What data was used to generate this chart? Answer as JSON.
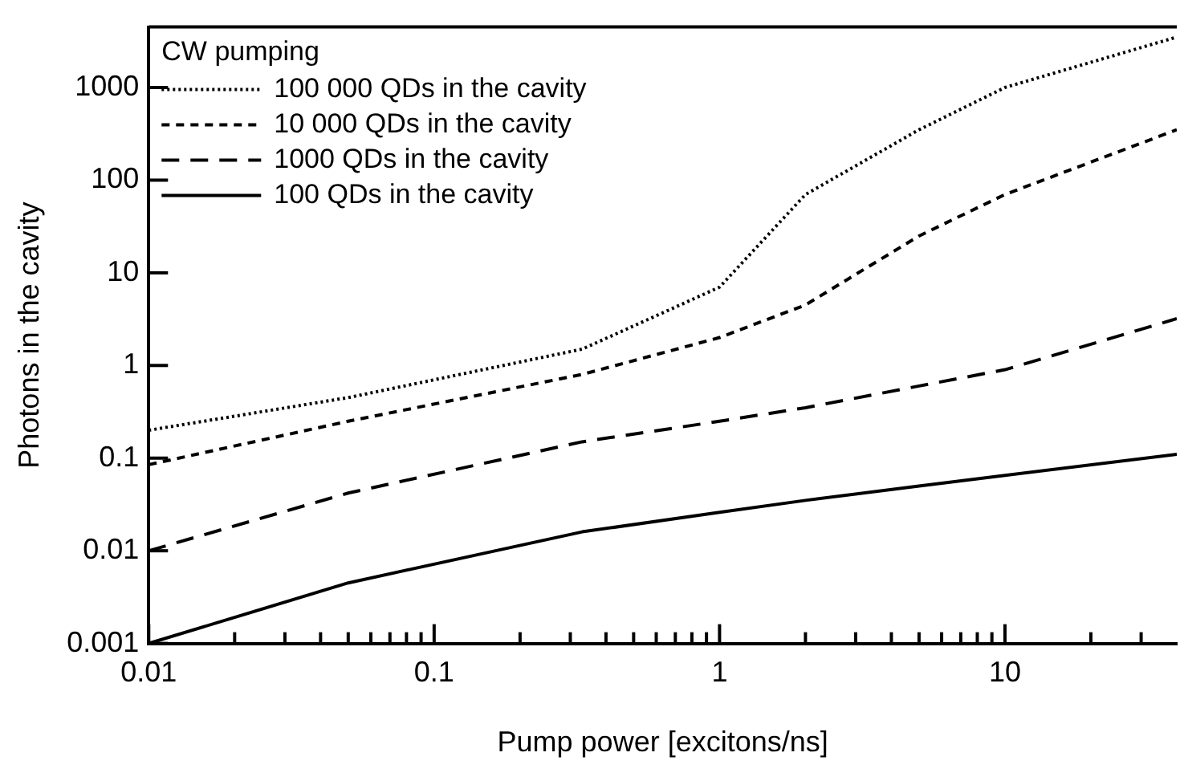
{
  "chart_data": {
    "type": "line",
    "xlabel": "Pump power [excitons/ns]",
    "ylabel": "Photons in the cavity",
    "legend_title": "CW pumping",
    "legend": "top left",
    "grid": false,
    "log": "xy",
    "marker": "none",
    "xlim": [
      0.01,
      40
    ],
    "ylim": [
      0.001,
      4500
    ],
    "xticks": [
      0.01,
      {
        "value": 0.02,
        "label": null
      },
      {
        "value": 0.03,
        "label": null
      },
      {
        "value": 0.04,
        "label": null
      },
      {
        "value": 0.05,
        "label": null
      },
      {
        "value": 0.06,
        "label": null
      },
      {
        "value": 0.07,
        "label": null
      },
      {
        "value": 0.08,
        "label": null
      },
      {
        "value": 0.09,
        "label": null
      },
      0.1,
      {
        "value": 0.2,
        "label": null
      },
      {
        "value": 0.3,
        "label": null
      },
      {
        "value": 0.4,
        "label": null
      },
      {
        "value": 0.5,
        "label": null
      },
      {
        "value": 0.6,
        "label": null
      },
      {
        "value": 0.7,
        "label": null
      },
      {
        "value": 0.8,
        "label": null
      },
      {
        "value": 0.9,
        "label": null
      },
      1,
      {
        "value": 2,
        "label": null
      },
      {
        "value": 3,
        "label": null
      },
      {
        "value": 4,
        "label": null
      },
      {
        "value": 5,
        "label": null
      },
      {
        "value": 6,
        "label": null
      },
      {
        "value": 7,
        "label": null
      },
      {
        "value": 8,
        "label": null
      },
      {
        "value": 9,
        "label": null
      },
      10,
      {
        "value": 20,
        "label": null
      },
      {
        "value": 30,
        "label": null
      }
    ],
    "yticks": [
      0.001,
      0.01,
      0.1,
      1,
      10,
      100,
      1000
    ],
    "x": [
      0.01,
      0.05,
      0.33,
      1,
      2,
      5,
      10,
      40
    ],
    "series": [
      {
        "name": "100 000 QDs in the cavity",
        "color": "#000000",
        "line_style": "dotted",
        "values": [
          0.2,
          0.45,
          1.5,
          7,
          70,
          350,
          1000,
          3500
        ]
      },
      {
        "name": "10 000 QDs in the cavity",
        "color": "#000000",
        "line_style": "dashed",
        "values": [
          0.085,
          0.25,
          0.8,
          2,
          4.5,
          25,
          70,
          350
        ]
      },
      {
        "name": "1000 QDs in the cavity",
        "color": "#000000",
        "line_style": "longdash",
        "values": [
          0.01,
          0.042,
          0.15,
          0.25,
          0.35,
          0.6,
          0.9,
          3.2
        ]
      },
      {
        "name": "100 QDs in the cavity",
        "color": "#000000",
        "line_style": "solid",
        "values": [
          0.001,
          0.0045,
          0.016,
          0.026,
          0.035,
          0.05,
          0.065,
          0.11
        ]
      }
    ]
  }
}
